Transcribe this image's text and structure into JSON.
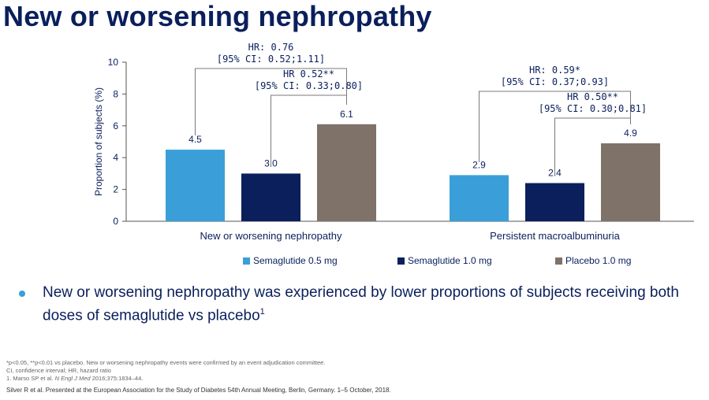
{
  "title": "New or worsening nephropathy",
  "chart_data": {
    "type": "bar",
    "ylabel": "Proportion of subjects (%)",
    "ylim": [
      0,
      10
    ],
    "yticks": [
      0,
      2,
      4,
      6,
      8,
      10
    ],
    "categories": [
      "New or worsening nephropathy",
      "Persistent macroalbuminuria"
    ],
    "series": [
      {
        "name": "Semaglutide 0.5 mg",
        "values": [
          4.5,
          2.9
        ],
        "color": "#3a9fd8"
      },
      {
        "name": "Semaglutide 1.0 mg",
        "values": [
          3.0,
          2.4
        ],
        "color": "#0a1f5c"
      },
      {
        "name": "Placebo 1.0 mg",
        "values": [
          6.1,
          4.9
        ],
        "color": "#7f7268"
      }
    ],
    "data_labels": [
      [
        "4.5",
        "3.0",
        "6.1"
      ],
      [
        "2.9",
        "2.4",
        "4.9"
      ]
    ],
    "annotations": [
      {
        "group": 0,
        "from_series": 0,
        "to_series": 2,
        "line1": "HR: 0.76",
        "line2": "[95% CI: 0.52;1.11]"
      },
      {
        "group": 0,
        "from_series": 1,
        "to_series": 2,
        "line1": "HR 0.52**",
        "line2": "[95% CI: 0.33;0.80]"
      },
      {
        "group": 1,
        "from_series": 0,
        "to_series": 2,
        "line1": "HR: 0.59*",
        "line2": "[95% CI: 0.37;0.93]"
      },
      {
        "group": 1,
        "from_series": 1,
        "to_series": 2,
        "line1": "HR 0.50**",
        "line2": "[95% CI: 0.30;0.81]"
      }
    ],
    "legend_position": "bottom",
    "grid": false
  },
  "bullet": {
    "text": "New or worsening nephropathy was experienced by lower proportions of subjects receiving both doses of semaglutide vs placebo",
    "ref": "1"
  },
  "footnotes": {
    "line1": "*p<0.05, **p<0.01 vs placebo. New or worsening nephropathy events were confirmed by an event adjudication committee.",
    "line2": "CI, confidence interval; HR, hazard ratio",
    "line3_prefix": "1. Marso SP et al.",
    "line3_journal": "N Engl J Med",
    "line3_suffix": "2016;375:1834–44.",
    "citation": "Silver R et al. Presented at the European Association for the Study of Diabetes 54th Annual Meeting, Berlin, Germany. 1–5 October, 2018."
  }
}
